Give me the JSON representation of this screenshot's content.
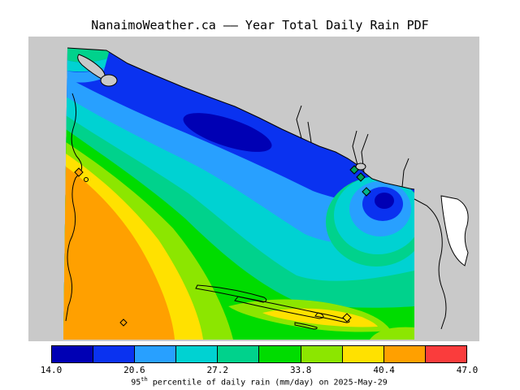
{
  "title": "NanaimoWeather.ca –– Year Total Daily Rain PDF",
  "caption": {
    "pre": "95",
    "sup": "th",
    "post": " percentile of daily rain (mm/day) on 2025-May-29"
  },
  "colors": {
    "background": "#ffffff",
    "map_gray": "#c9c9c9",
    "inlet_white": "#ffffff",
    "coastline": "#000000"
  },
  "markers": [
    {
      "label": "station-nanaimo",
      "fill": "#ffa000"
    },
    {
      "label": "station-howe-1",
      "fill": "#00a05a"
    },
    {
      "label": "station-howe-2",
      "fill": "#00a05a"
    },
    {
      "label": "station-vancouver",
      "fill": "#00b48c"
    },
    {
      "label": "station-south-island",
      "fill": "#ffa000"
    },
    {
      "label": "station-gulf-islands",
      "fill": "#ffe100"
    }
  ],
  "chart_data": {
    "type": "heatmap",
    "title": "NanaimoWeather.ca –– Year Total Daily Rain PDF",
    "variable": "95th percentile of daily rain (mm/day)",
    "date": "2025-May-29",
    "legend_position": "bottom",
    "colorbar": {
      "min": 14.0,
      "max": 47.0,
      "ticks": [
        "14.0",
        "20.6",
        "27.2",
        "33.8",
        "40.4",
        "47.0"
      ],
      "tick_values": [
        14.0,
        20.6,
        27.2,
        33.8,
        40.4,
        47.0
      ],
      "n_segments": 10,
      "segment_width_mm": 3.3
    },
    "palette": [
      "#0000b4",
      "#0a32f0",
      "#28a0ff",
      "#00d2d2",
      "#00d28c",
      "#00dc00",
      "#8ce600",
      "#ffe100",
      "#ffa000",
      "#fa3c3c"
    ],
    "bands": [
      {
        "range_mm_day": "14.0-17.3",
        "color": "#0000b4",
        "where": "dark-blue core along mainland coast NE of strait; core of secondary minimum near Vancouver"
      },
      {
        "range_mm_day": "17.3-20.6",
        "color": "#0a32f0",
        "where": "band hugging the northeast (mainland) coast"
      },
      {
        "range_mm_day": "20.6-23.9",
        "color": "#28a0ff",
        "where": "band below the blue, upper strait"
      },
      {
        "range_mm_day": "23.9-27.2",
        "color": "#00d2d2",
        "where": "mid-strait band, wraps secondary minimum at Vancouver"
      },
      {
        "range_mm_day": "27.2-30.5",
        "color": "#00d28c",
        "where": "mid-strait band"
      },
      {
        "range_mm_day": "30.5-33.8",
        "color": "#00dc00",
        "where": "broad green area over central/southern strait and SE corner"
      },
      {
        "range_mm_day": "33.8-37.1",
        "color": "#8ce600",
        "where": "bright band along Vancouver Island side and Gulf Islands streak"
      },
      {
        "range_mm_day": "37.1-40.4",
        "color": "#ffe100",
        "where": "yellow band near Vancouver Island coast and streak along Gulf Islands"
      },
      {
        "range_mm_day": "40.4-43.7",
        "color": "#ffa000",
        "where": "orange maximum over southwest / Vancouver Island side"
      },
      {
        "range_mm_day": "43.7-47.0",
        "color": "#fa3c3c",
        "where": "colorbar end only (not visible on map)"
      }
    ],
    "gradient_description": "Values decrease from ~43 mm/day (orange) on the Vancouver Island (west) side to ~15 mm/day (dark blue) along the mainland coast to the northeast; a secondary minimum sits near Vancouver; gray areas are outside the data domain."
  }
}
